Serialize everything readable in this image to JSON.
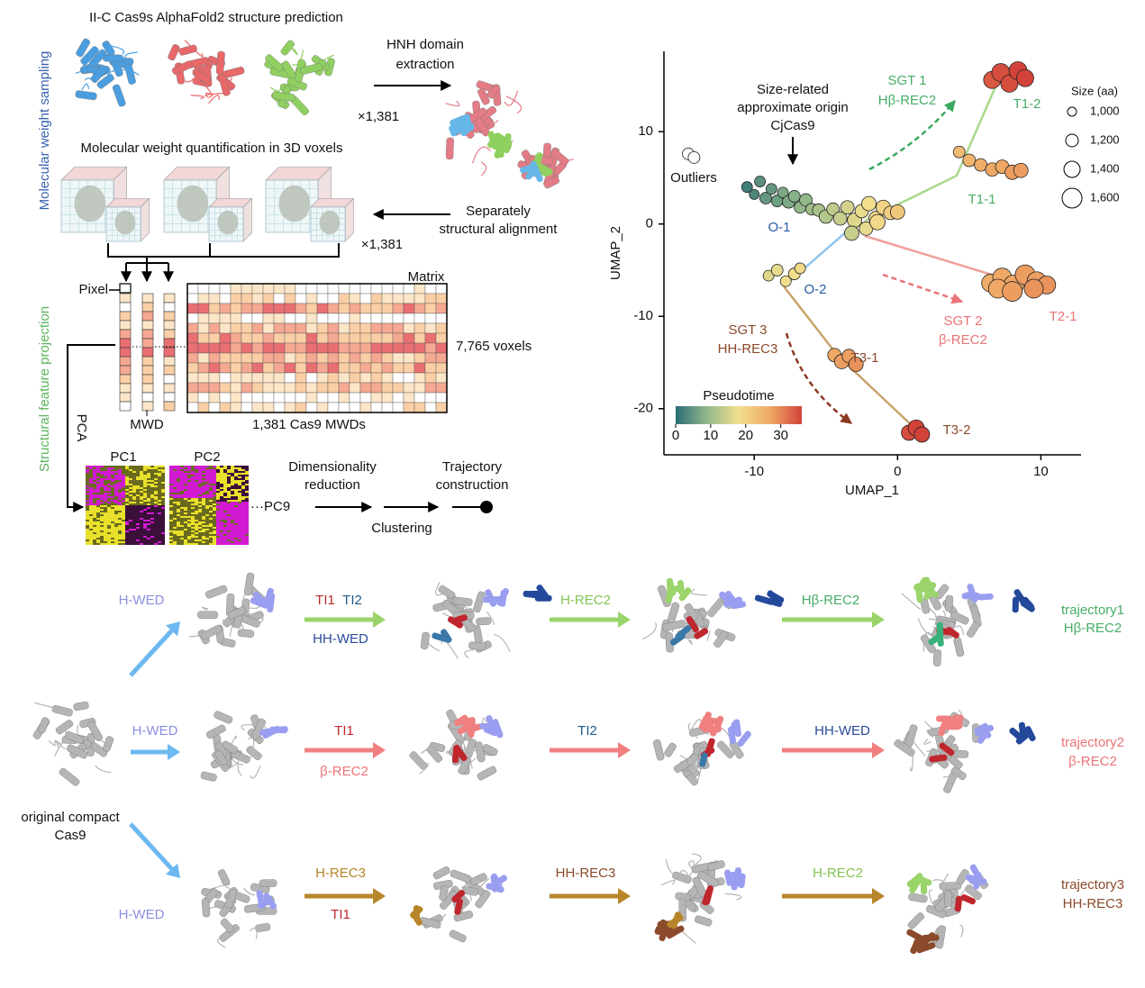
{
  "workflow": {
    "sections": [
      "Molecular weight sampling",
      "Structural feature projection"
    ],
    "prediction_title": "II-C Cas9s AlphaFold2 structure prediction",
    "hnh": [
      "HNH domain",
      "extraction"
    ],
    "count_1": "×1,381",
    "voxel_title": "Molecular weight quantification in 3D voxels",
    "alignment": [
      "Separately",
      "structural alignment"
    ],
    "count_2": "×1,381",
    "pixel": "Pixel",
    "matrix": "Matrix",
    "voxels": "7,765 voxels",
    "mwd": "MWD",
    "mwds": "1,381 Cas9 MWDs",
    "pca": "PCA",
    "pc1": "PC1",
    "pc2": "PC2",
    "pc9": "···PC9",
    "dimred": [
      "Dimensionality",
      "reduction"
    ],
    "clustering": "Clustering",
    "trajectory": [
      "Trajectory",
      "construction"
    ]
  },
  "chart_data": {
    "type": "scatter",
    "xlabel": "UMAP_1",
    "ylabel": "UMAP_2",
    "xlim": [
      -16.3,
      12.8
    ],
    "ylim": [
      -25,
      18.7
    ],
    "xticks": [
      -10,
      0,
      10
    ],
    "yticks": [
      -20,
      -10,
      0,
      10
    ],
    "points": {
      "x": [
        -10.5,
        -10,
        -9.6,
        -9.2,
        -8.8,
        -8.4,
        -8,
        -7.6,
        -7.2,
        -6.8,
        -6.4,
        -6,
        -5.5,
        -5,
        -4.5,
        -4,
        -3.5,
        -3,
        -2.5,
        -2,
        -1.5,
        -1,
        -0.5,
        0,
        -3.2,
        -2.2,
        -1.4,
        -9,
        -8.4,
        -7.8,
        -7.2,
        -6.8,
        -4.4,
        -3.9,
        -3.4,
        -2.9,
        0.8,
        1.3,
        1.7,
        4.3,
        5,
        5.8,
        6.6,
        7.3,
        8,
        8.6,
        6.6,
        7.2,
        7.8,
        8.4,
        8.9,
        6.5,
        7.3,
        8.1,
        8.9,
        9.7,
        10.4,
        7,
        8,
        9.5,
        -14.6,
        -14.2
      ],
      "y": [
        4,
        3.2,
        4.6,
        2.8,
        3.8,
        2.5,
        3.4,
        2.4,
        3,
        1.8,
        2.6,
        1.6,
        1.5,
        0.8,
        1.6,
        0.6,
        1.8,
        0.4,
        1.4,
        2.2,
        0.6,
        1.8,
        1.2,
        1.3,
        -1,
        -0.5,
        0.2,
        -5.6,
        -5,
        -6.2,
        -5.4,
        -4.8,
        -14.2,
        -14.9,
        -14.3,
        -15.2,
        -22.6,
        -22.1,
        -22.8,
        7.8,
        6.9,
        6.4,
        5.9,
        6.2,
        5.6,
        5.8,
        15.6,
        16.4,
        15.2,
        16.6,
        15.8,
        -6.4,
        -5.8,
        -6.6,
        -5.5,
        -6.2,
        -6.6,
        -7,
        -7.3,
        -7,
        7.6,
        7.2
      ],
      "pseudotime": [
        2,
        3,
        4,
        5,
        5,
        6,
        7,
        7,
        8,
        9,
        9,
        10,
        11,
        12,
        13,
        14,
        15,
        16,
        17,
        18,
        19,
        20,
        21,
        22,
        14,
        17,
        19,
        16,
        17,
        18,
        18,
        19,
        27,
        28,
        28,
        29,
        35,
        36,
        36,
        24,
        25,
        26,
        27,
        27,
        28,
        28,
        34,
        35,
        35,
        36,
        36,
        26,
        27,
        27,
        28,
        28,
        29,
        27,
        28,
        29,
        null,
        null
      ],
      "size": [
        1100,
        1050,
        1100,
        1150,
        1100,
        1150,
        1100,
        1200,
        1150,
        1150,
        1200,
        1150,
        1200,
        1250,
        1200,
        1250,
        1250,
        1300,
        1250,
        1300,
        1300,
        1300,
        1250,
        1300,
        1300,
        1250,
        1350,
        1100,
        1150,
        1100,
        1150,
        1100,
        1250,
        1300,
        1250,
        1300,
        1350,
        1400,
        1350,
        1150,
        1200,
        1200,
        1250,
        1250,
        1300,
        1300,
        1450,
        1500,
        1450,
        1500,
        1450,
        1500,
        1550,
        1600,
        1600,
        1550,
        1500,
        1550,
        1600,
        1550,
        1150,
        1150
      ]
    },
    "colorbar": {
      "title": "Pseudotime",
      "lim": [
        0,
        36
      ],
      "ticks": [
        0,
        10,
        20,
        30
      ],
      "colors": [
        "#2b6d78",
        "#93b98a",
        "#f2df8e",
        "#efa865",
        "#d3433a"
      ]
    },
    "size_legend": {
      "title": "Size (aa)",
      "values": [
        {
          "value": 1000,
          "label": "1,000"
        },
        {
          "value": 1200,
          "label": "1,200"
        },
        {
          "value": 1400,
          "label": "1,400"
        },
        {
          "value": 1600,
          "label": "1,600"
        }
      ]
    },
    "cluster_labels": [
      "O-1",
      "O-2",
      "T1-1",
      "T1-2",
      "T2-1",
      "T3-1",
      "T3-2"
    ],
    "outliers_label": "Outliers",
    "annotations": {
      "origin": [
        "Size-related",
        "approximate origin",
        "CjCas9"
      ],
      "sgt1": [
        "SGT 1",
        "Hβ-REC2"
      ],
      "sgt2": [
        "SGT 2",
        "β-REC2"
      ],
      "sgt3": [
        "SGT 3",
        "HH-REC3"
      ]
    }
  },
  "pathways": {
    "origin": [
      "original compact",
      "Cas9"
    ],
    "rows": [
      {
        "entry": "H-WED",
        "steps": [
          [
            "TI1",
            "TI2",
            "HH-WED"
          ],
          [
            "H-REC2"
          ],
          [
            "Hβ-REC2"
          ]
        ],
        "result": [
          "trajectory1",
          "Hβ-REC2"
        ]
      },
      {
        "entry": "H-WED",
        "steps": [
          [
            "TI1",
            "β-REC2"
          ],
          [
            "TI2"
          ],
          [
            "HH-WED"
          ]
        ],
        "result": [
          "trajectory2",
          "β-REC2"
        ]
      },
      {
        "entry": "H-WED",
        "steps": [
          [
            "H-REC3",
            "TI1"
          ],
          [
            "HH-REC3"
          ],
          [
            "H-REC2"
          ]
        ],
        "result": [
          "trajectory3",
          "HH-REC3"
        ]
      }
    ]
  }
}
